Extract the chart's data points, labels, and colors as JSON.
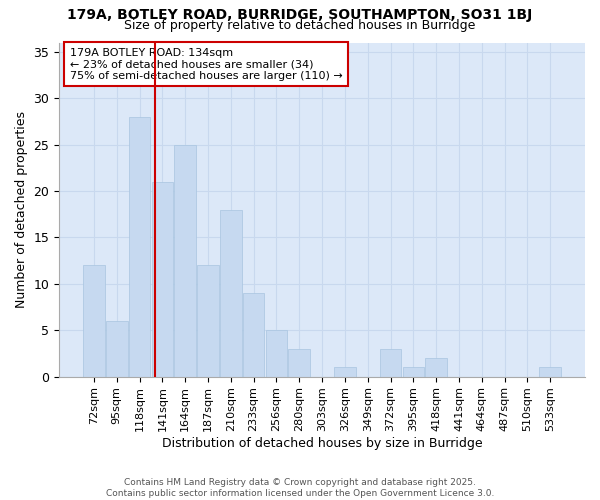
{
  "title1": "179A, BOTLEY ROAD, BURRIDGE, SOUTHAMPTON, SO31 1BJ",
  "title2": "Size of property relative to detached houses in Burridge",
  "xlabel": "Distribution of detached houses by size in Burridge",
  "ylabel": "Number of detached properties",
  "categories": [
    "72sqm",
    "95sqm",
    "118sqm",
    "141sqm",
    "164sqm",
    "187sqm",
    "210sqm",
    "233sqm",
    "256sqm",
    "280sqm",
    "303sqm",
    "326sqm",
    "349sqm",
    "372sqm",
    "395sqm",
    "418sqm",
    "441sqm",
    "464sqm",
    "487sqm",
    "510sqm",
    "533sqm"
  ],
  "values": [
    12,
    6,
    28,
    21,
    25,
    12,
    18,
    9,
    5,
    3,
    0,
    1,
    0,
    3,
    1,
    2,
    0,
    0,
    0,
    0,
    1
  ],
  "bar_color": "#c6d9f0",
  "bar_edge_color": "#a8c4e0",
  "annotation_line1": "179A BOTLEY ROAD: 134sqm",
  "annotation_line2": "← 23% of detached houses are smaller (34)",
  "annotation_line3": "75% of semi-detached houses are larger (110) →",
  "annotation_box_edge": "#cc0000",
  "annotation_box_fill": "#ffffff",
  "red_line_color": "#cc0000",
  "grid_color": "#c8d8ee",
  "plot_bg_color": "#dce8f8",
  "fig_bg_color": "#ffffff",
  "ylim": [
    0,
    36
  ],
  "yticks": [
    0,
    5,
    10,
    15,
    20,
    25,
    30,
    35
  ],
  "footer1": "Contains HM Land Registry data © Crown copyright and database right 2025.",
  "footer2": "Contains public sector information licensed under the Open Government Licence 3.0."
}
